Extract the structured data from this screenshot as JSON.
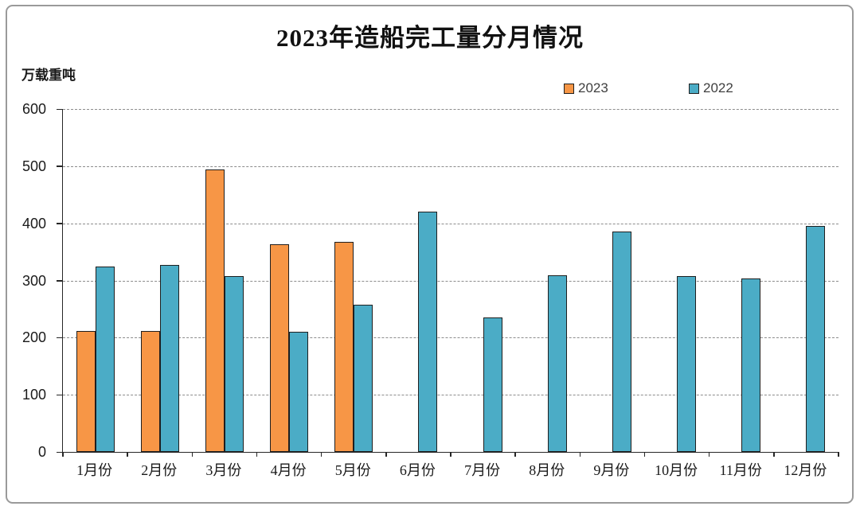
{
  "page": {
    "background": "#ffffff",
    "frame_border_color": "#9a9a9a"
  },
  "chart": {
    "title": "2023年造船完工量分月情况",
    "unit_label": "万载重吨",
    "legend": [
      {
        "label": "2023",
        "color": "#F79646"
      },
      {
        "label": "2022",
        "color": "#4BACC6"
      }
    ]
  },
  "chart_data": {
    "type": "bar",
    "title": "2023年造船完工量分月情况",
    "xlabel": "",
    "ylabel": "万载重吨",
    "categories": [
      "1月份",
      "2月份",
      "3月份",
      "4月份",
      "5月份",
      "6月份",
      "7月份",
      "8月份",
      "9月份",
      "10月份",
      "11月份",
      "12月份"
    ],
    "series": [
      {
        "name": "2023",
        "color": "#F79646",
        "values": [
          212,
          212,
          494,
          364,
          368,
          null,
          null,
          null,
          null,
          null,
          null,
          null
        ]
      },
      {
        "name": "2022",
        "color": "#4BACC6",
        "values": [
          325,
          327,
          308,
          210,
          257,
          421,
          235,
          309,
          385,
          308,
          303,
          396
        ]
      }
    ],
    "ylim": [
      0,
      600
    ],
    "ytick_step": 100,
    "grid": "horizontal-dashed",
    "legend_position": "top-right",
    "bar_border_color": "#1f1f1f",
    "gridline_color": "#8c8c8c",
    "axis_color": "#262626"
  }
}
